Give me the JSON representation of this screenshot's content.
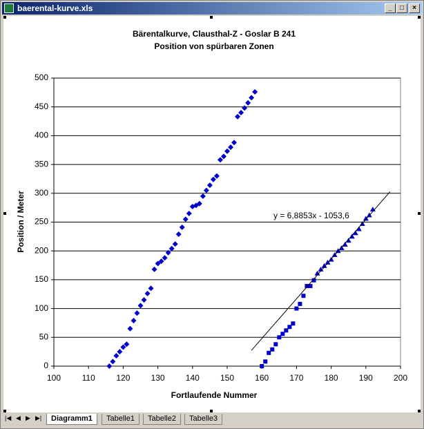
{
  "window": {
    "title": "baerental-kurve.xls"
  },
  "tabs": [
    "Diagramm1",
    "Tabelle1",
    "Tabelle2",
    "Tabelle3"
  ],
  "chart_data": {
    "type": "scatter",
    "title": "Bärentalkurve, Clausthal-Z - Goslar B 241",
    "subtitle": "Position von spürbaren Zonen",
    "x_label": "Fortlaufende Nummer",
    "y_label": "Position / Meter",
    "xlim": [
      100,
      200
    ],
    "xticks": [
      100,
      110,
      120,
      130,
      140,
      150,
      160,
      170,
      180,
      190,
      200
    ],
    "ylim": [
      0,
      500
    ],
    "yticks": [
      0,
      50,
      100,
      150,
      200,
      250,
      300,
      350,
      400,
      450,
      500
    ],
    "grid": true,
    "series": [
      {
        "color": "#0000cc",
        "marker": "diamond",
        "x": [
          116,
          117,
          118,
          119,
          120,
          121,
          122,
          123,
          124,
          125,
          126,
          127,
          128,
          129,
          130,
          131,
          132,
          133,
          134,
          135,
          136,
          137,
          138,
          139,
          140,
          141,
          142,
          143,
          144,
          145,
          146,
          147,
          148,
          149,
          150,
          151,
          152,
          153,
          154,
          155,
          156,
          157,
          158
        ],
        "values": [
          0,
          8,
          18,
          25,
          33,
          38,
          65,
          79,
          92,
          105,
          115,
          126,
          135,
          168,
          178,
          182,
          188,
          197,
          204,
          212,
          229,
          241,
          255,
          265,
          277,
          279,
          282,
          295,
          305,
          314,
          324,
          330,
          358,
          364,
          373,
          380,
          388,
          433,
          440,
          448,
          457,
          466,
          476
        ]
      },
      {
        "color": "#0000cc",
        "marker": "square",
        "x": [
          160,
          161,
          162,
          163,
          164,
          165,
          166,
          167,
          168,
          169,
          170,
          171,
          172,
          173,
          174,
          175
        ],
        "values": [
          0,
          8,
          23,
          29,
          38,
          50,
          56,
          62,
          68,
          74,
          100,
          108,
          122,
          139,
          139,
          149
        ]
      },
      {
        "color": "#0000cc",
        "marker": "triangle",
        "x": [
          176,
          177,
          178,
          179,
          180,
          181,
          182,
          183,
          184,
          185,
          186,
          187,
          188,
          189,
          190,
          191,
          192
        ],
        "values": [
          161,
          168,
          174,
          180,
          185,
          193,
          200,
          205,
          211,
          218,
          225,
          231,
          238,
          247,
          256,
          262,
          272
        ]
      }
    ],
    "trendline": {
      "label": "y = 6,8853x - 1053,6",
      "slope": 6.8853,
      "intercept": -1053.6,
      "x_range": [
        157,
        197
      ]
    }
  }
}
